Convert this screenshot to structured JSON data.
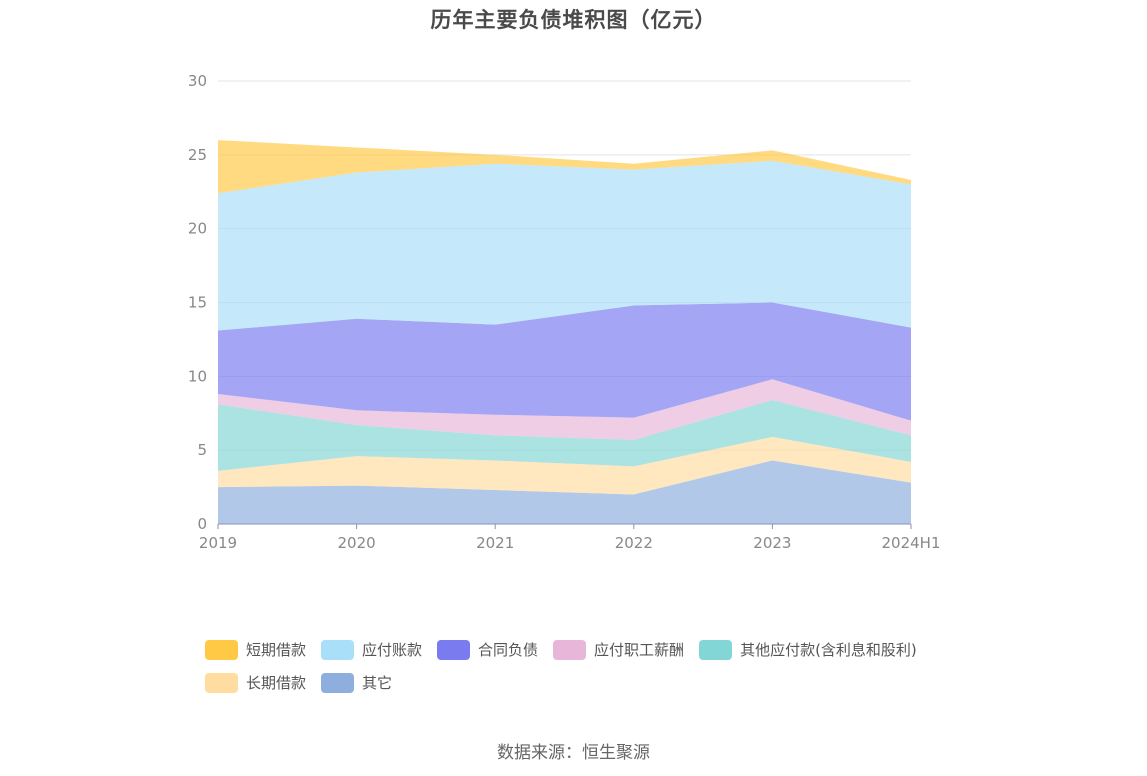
{
  "title": "历年主要负债堆积图（亿元）",
  "source": "数据来源：恒生聚源",
  "chart_data": {
    "type": "area",
    "stacked": true,
    "categories": [
      "2019",
      "2020",
      "2021",
      "2022",
      "2023",
      "2024H1"
    ],
    "ylim": [
      0,
      30
    ],
    "yticks": [
      0,
      5,
      10,
      15,
      20,
      25,
      30
    ],
    "grid": true,
    "legend_position": "bottom",
    "series": [
      {
        "name": "其它",
        "color": "#8eaedd",
        "values": [
          2.5,
          2.6,
          2.3,
          2.0,
          4.3,
          2.8
        ]
      },
      {
        "name": "长期借款",
        "color": "#ffdca0",
        "values": [
          1.1,
          2.0,
          2.0,
          1.9,
          1.6,
          1.4
        ]
      },
      {
        "name": "其他应付款(含利息和股利)",
        "color": "#83d6d6",
        "values": [
          4.5,
          2.1,
          1.7,
          1.8,
          2.5,
          1.8
        ]
      },
      {
        "name": "应付职工薪酬",
        "color": "#e8b6d8",
        "values": [
          0.7,
          1.0,
          1.4,
          1.5,
          1.4,
          1.0
        ]
      },
      {
        "name": "合同负债",
        "color": "#7b7bf0",
        "values": [
          4.3,
          6.2,
          6.1,
          7.6,
          5.2,
          6.3
        ]
      },
      {
        "name": "应付账款",
        "color": "#a9dff8",
        "values": [
          9.3,
          9.9,
          10.9,
          9.2,
          9.6,
          9.7
        ]
      },
      {
        "name": "短期借款",
        "color": "#ffc845",
        "values": [
          3.6,
          1.7,
          0.6,
          0.4,
          0.7,
          0.3
        ]
      }
    ]
  },
  "legend_order": [
    "短期借款",
    "应付账款",
    "合同负债",
    "应付职工薪酬",
    "其他应付款(含利息和股利)",
    "长期借款",
    "其它"
  ]
}
